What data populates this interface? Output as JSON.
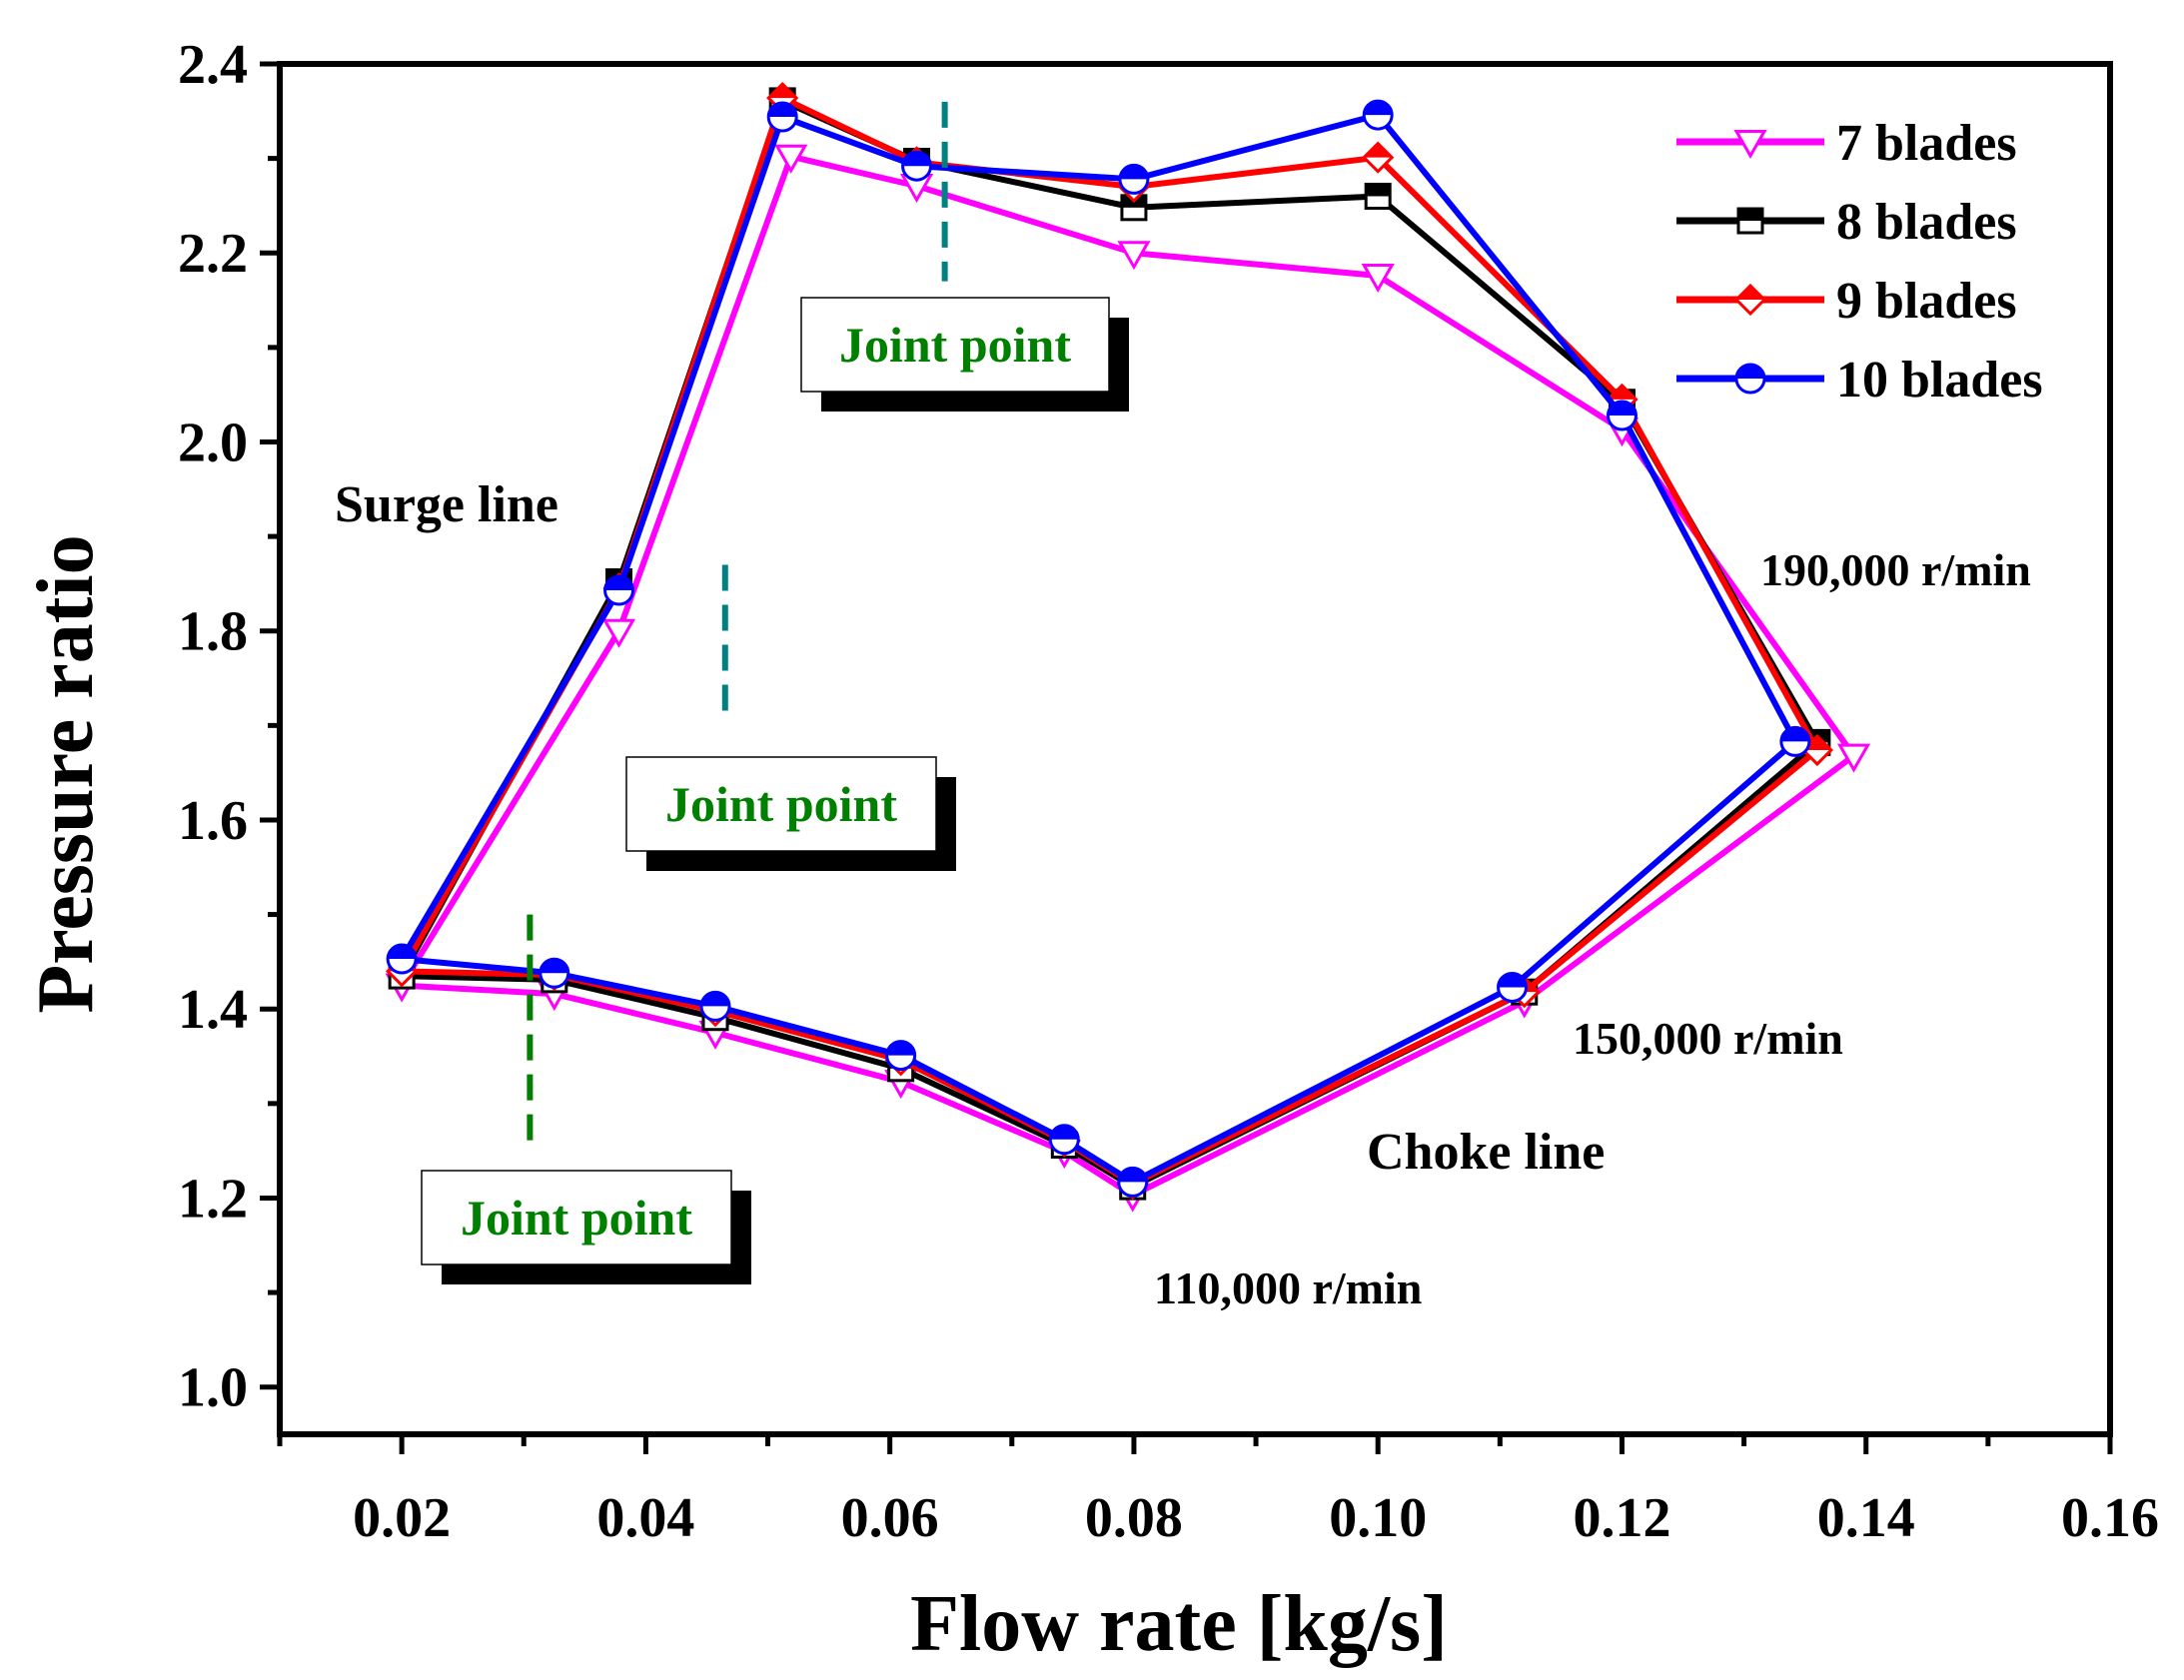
{
  "chart_data": {
    "type": "line",
    "xlabel": "Flow rate [kg/s]",
    "ylabel": "Pressure ratio",
    "xlim": [
      0.01,
      0.16
    ],
    "ylim": [
      0.95,
      2.4
    ],
    "xticks": [
      0.02,
      0.04,
      0.06,
      0.08,
      0.1,
      0.12,
      0.14,
      0.16
    ],
    "xtick_labels": [
      "0.02",
      "0.04",
      "0.06",
      "0.08",
      "0.10",
      "0.12",
      "0.14",
      "0.16"
    ],
    "yticks": [
      1.0,
      1.2,
      1.4,
      1.6,
      1.8,
      2.0,
      2.2,
      2.4
    ],
    "ytick_labels": [
      "1.0",
      "1.2",
      "1.4",
      "1.6",
      "1.8",
      "2.0",
      "2.2",
      "2.4"
    ],
    "legend_position": "top-right",
    "series": [
      {
        "name": "7 blades",
        "color": "#ff00ff",
        "marker": "triangle-down",
        "x": [
          0.02,
          0.0325,
          0.0457,
          0.0609,
          0.0743,
          0.0799,
          0.112,
          0.139,
          0.12,
          0.1,
          0.08,
          0.0622,
          0.0519,
          0.0378,
          0.02
        ],
        "y": [
          1.425,
          1.416,
          1.375,
          1.323,
          1.249,
          1.203,
          1.408,
          1.668,
          2.013,
          2.176,
          2.2,
          2.271,
          2.302,
          1.8,
          1.425
        ]
      },
      {
        "name": "8 blades",
        "color": "#000000",
        "marker": "square",
        "x": [
          0.02,
          0.0325,
          0.0457,
          0.0609,
          0.0743,
          0.0799,
          0.112,
          0.136,
          0.12,
          0.1,
          0.08,
          0.0622,
          0.0512,
          0.0378,
          0.02
        ],
        "y": [
          1.435,
          1.431,
          1.391,
          1.337,
          1.256,
          1.212,
          1.418,
          1.682,
          2.042,
          2.26,
          2.248,
          2.297,
          2.361,
          1.852,
          1.435
        ]
      },
      {
        "name": "9 blades",
        "color": "#ff0000",
        "marker": "diamond",
        "x": [
          0.02,
          0.0325,
          0.0457,
          0.0609,
          0.0743,
          0.0799,
          0.112,
          0.136,
          0.12,
          0.1,
          0.08,
          0.0622,
          0.0512,
          0.0378,
          0.02
        ],
        "y": [
          1.44,
          1.436,
          1.398,
          1.346,
          1.26,
          1.215,
          1.418,
          1.674,
          2.045,
          2.301,
          2.27,
          2.296,
          2.364,
          1.845,
          1.44
        ]
      },
      {
        "name": "10 blades",
        "color": "#0000ff",
        "marker": "circle",
        "x": [
          0.02,
          0.0325,
          0.0457,
          0.0609,
          0.0743,
          0.0799,
          0.111,
          0.1342,
          0.12,
          0.1,
          0.08,
          0.0622,
          0.0512,
          0.0378,
          0.02
        ],
        "y": [
          1.453,
          1.438,
          1.403,
          1.351,
          1.262,
          1.217,
          1.423,
          1.683,
          2.028,
          2.346,
          2.278,
          2.292,
          2.344,
          1.843,
          1.453
        ]
      }
    ],
    "joint_point_lines": [
      {
        "x": 0.0645,
        "y_range": [
          2.17,
          2.36
        ],
        "color": "#008080"
      },
      {
        "x": 0.0465,
        "y_range": [
          1.71,
          1.87
        ],
        "color": "#008080"
      },
      {
        "x": 0.0305,
        "y_range": [
          1.26,
          1.5
        ],
        "color": "#008000"
      }
    ],
    "annotations": {
      "joint_point_top": "Joint point",
      "joint_point_mid": "Joint point",
      "joint_point_low": "Joint point",
      "surge_line": "Surge line",
      "choke_line": "Choke line",
      "speed_190k": "190,000 r/min",
      "speed_150k": "150,000 r/min",
      "speed_110k": "110,000 r/min"
    }
  }
}
